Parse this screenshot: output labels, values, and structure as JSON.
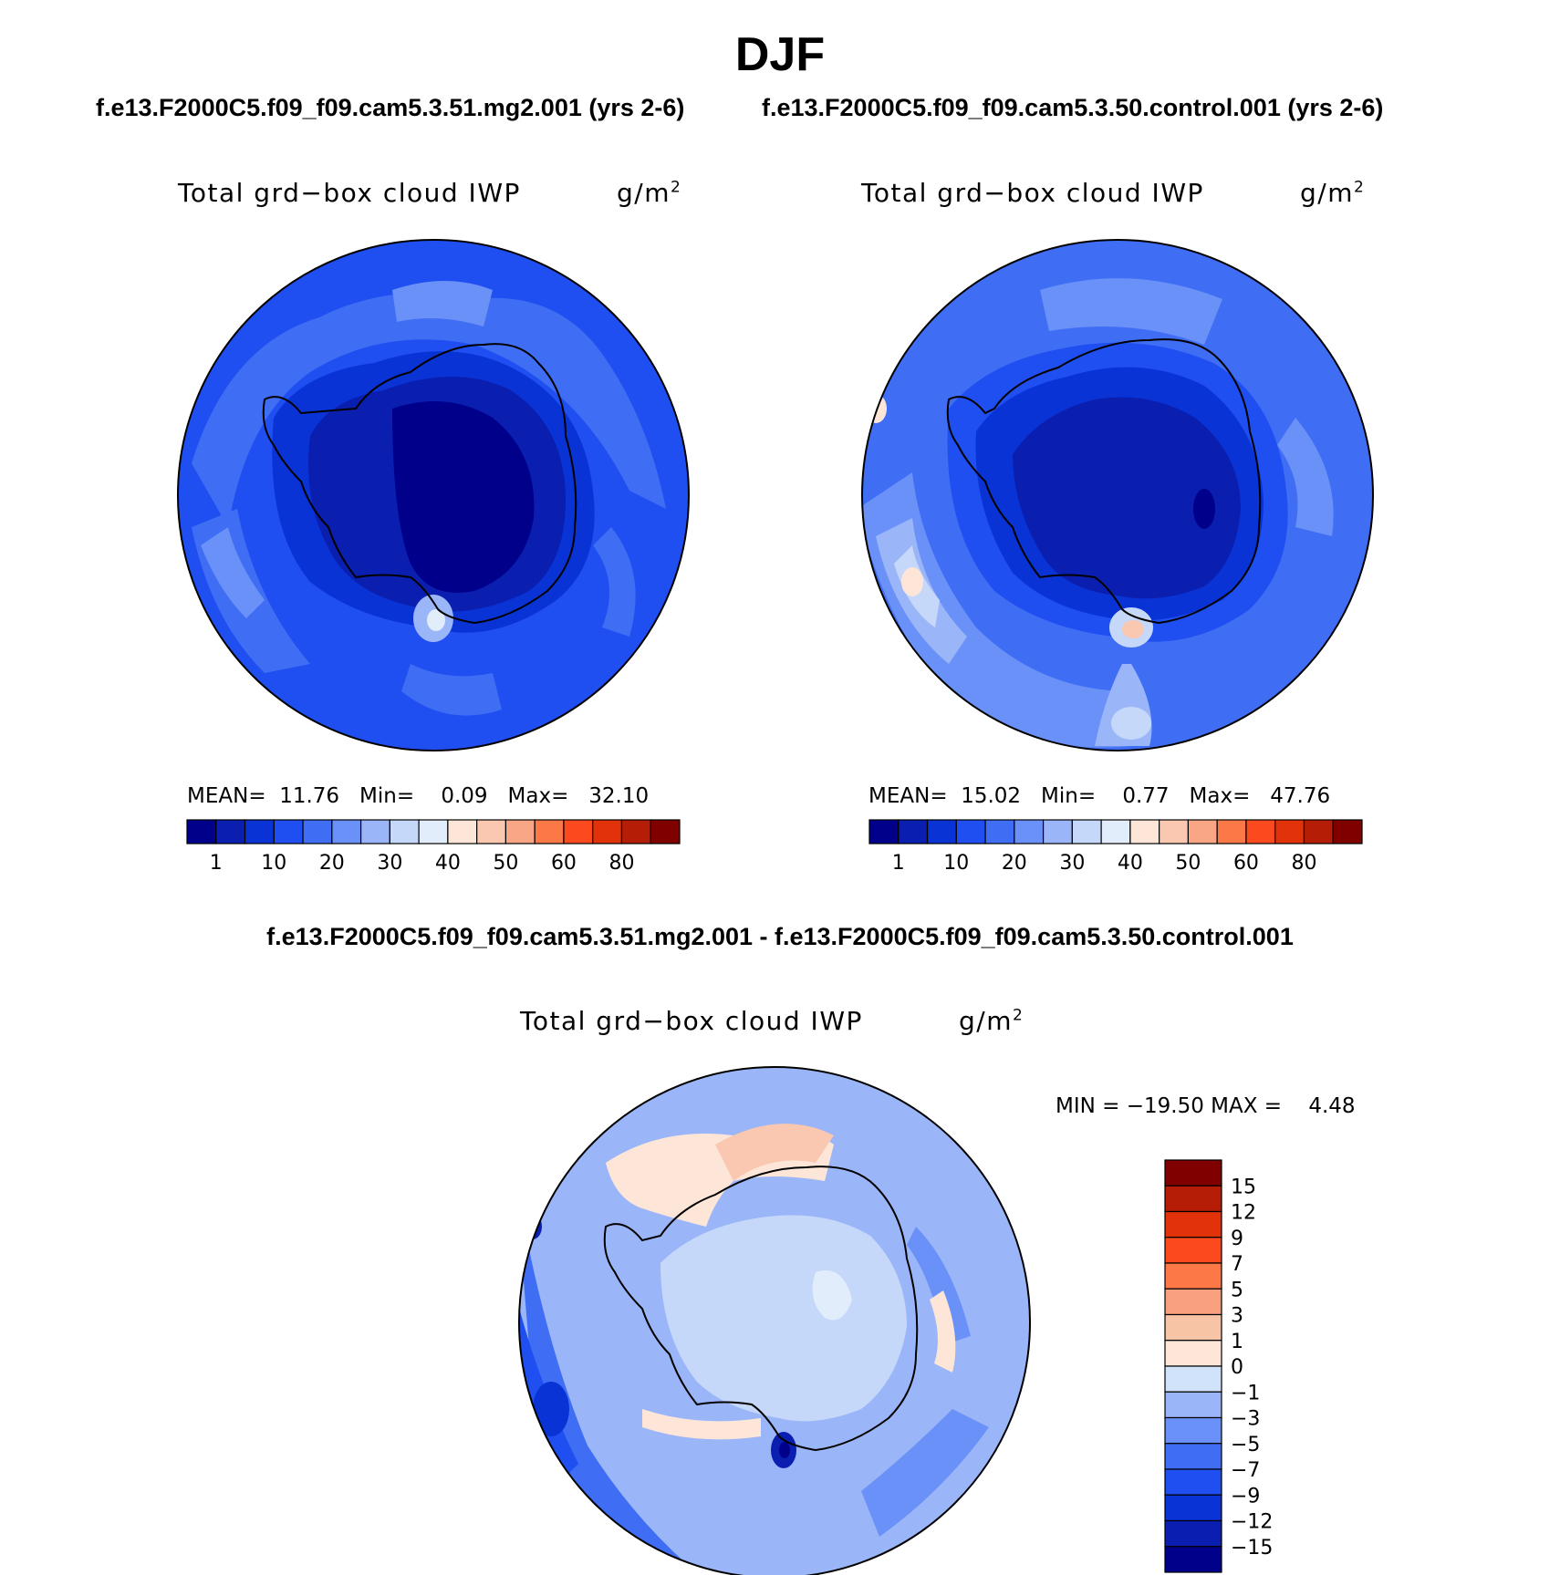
{
  "page": {
    "title": "DJF",
    "case_title_left": "f.e13.F2000C5.f09_f09.cam5.3.51.mg2.001 (yrs 2-6)",
    "case_title_right": "f.e13.F2000C5.f09_f09.cam5.3.50.control.001 (yrs 2-6)",
    "diff_title": "f.e13.F2000C5.f09_f09.cam5.3.51.mg2.001 - f.e13.F2000C5.f09_f09.cam5.3.50.control.001"
  },
  "panels": [
    {
      "variable_label": "Total grd−box cloud IWP",
      "units": "g/m",
      "units_exp": "2",
      "stats": {
        "mean_label": "MEAN=",
        "mean": "11.76",
        "min_label": "Min=",
        "min": "0.09",
        "max_label": "Max=",
        "max": "32.10"
      }
    },
    {
      "variable_label": "Total grd−box cloud IWP",
      "units": "g/m",
      "units_exp": "2",
      "stats": {
        "mean_label": "MEAN=",
        "mean": "15.02",
        "min_label": "Min=",
        "min": "0.77",
        "max_label": "Max=",
        "max": "47.76"
      }
    },
    {
      "variable_label": "Total grd−box cloud IWP",
      "units": "g/m",
      "units_exp": "2",
      "min_max_text": "MIN = −19.50 MAX =    4.48"
    }
  ],
  "colorbar_abs": {
    "colors": [
      "#00008b",
      "#0a1fb0",
      "#0a33d6",
      "#1f4ff0",
      "#3f6ef5",
      "#6a91f7",
      "#9bb6f8",
      "#c6d8fa",
      "#e2edfb",
      "#fde6d8",
      "#fac8b0",
      "#f8a686",
      "#fd7847",
      "#fc4a1e",
      "#e1320a",
      "#b51d06",
      "#800000"
    ],
    "tick_labels": [
      "1",
      "10",
      "20",
      "30",
      "40",
      "50",
      "60",
      "80"
    ]
  },
  "colorbar_diff": {
    "colors": [
      "#00008b",
      "#0a1fb0",
      "#0a33d6",
      "#1f4ff0",
      "#3f6ef5",
      "#6a91f7",
      "#9bb6f8",
      "#d0e3fb",
      "#fde6d8",
      "#f8c4a6",
      "#f8a080",
      "#fd7847",
      "#fc4a1e",
      "#e1320a",
      "#b51d06",
      "#800000"
    ],
    "tick_labels": [
      "−15",
      "−12",
      "−9",
      "−7",
      "−5",
      "−3",
      "−1",
      "0",
      "1",
      "3",
      "5",
      "7",
      "9",
      "12",
      "15"
    ]
  },
  "map_colors": {
    "ocean_a": "#1f4ff0",
    "mid_a": "#3f6ef5",
    "light_a": "#6a91f7",
    "pale_a": "#9bb6f8",
    "ice_a": "#0a33d6",
    "core_a": "#0a1fb0",
    "coast": "#000000"
  }
}
